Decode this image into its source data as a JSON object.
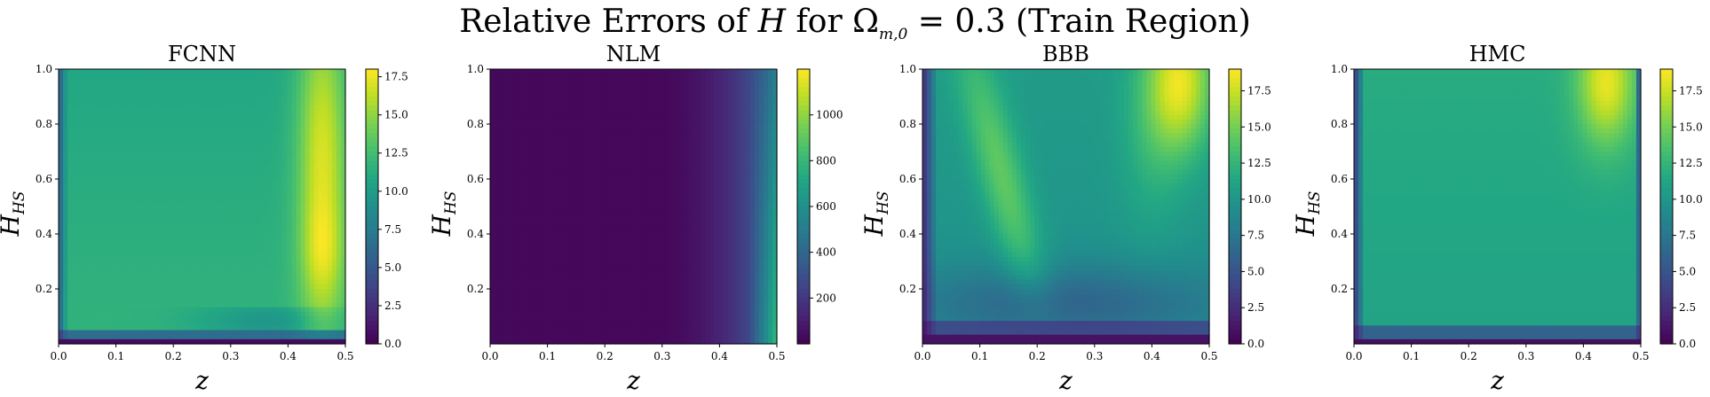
{
  "figure": {
    "suptitle": {
      "text_before": "Relative Errors of ",
      "var": "H",
      "text_mid": " for ",
      "omega": "Ω",
      "omega_sub": "m,0",
      "text_after": " = 0.3 (Train Region)"
    }
  },
  "chart_data": [
    {
      "type": "heatmap",
      "title": "FCNN",
      "xlabel": "z",
      "ylabel_main": "H",
      "ylabel_sub": "HS",
      "xlim": [
        0,
        0.5
      ],
      "ylim": [
        0,
        1.0
      ],
      "xticks": [
        "0.0",
        "0.1",
        "0.2",
        "0.3",
        "0.4",
        "0.5"
      ],
      "yticks": [
        "0.2",
        "0.4",
        "0.6",
        "0.8",
        "1.0"
      ],
      "colorbar": {
        "min": 0,
        "max": 18,
        "ticks": [
          "0.0",
          "2.5",
          "5.0",
          "7.5",
          "10.0",
          "12.5",
          "15.0",
          "17.5"
        ]
      },
      "colormap": "viridis"
    },
    {
      "type": "heatmap",
      "title": "NLM",
      "xlabel": "z",
      "ylabel_main": "H",
      "ylabel_sub": "HS",
      "xlim": [
        0,
        0.5
      ],
      "ylim": [
        0,
        1.0
      ],
      "xticks": [
        "0.0",
        "0.1",
        "0.2",
        "0.3",
        "0.4",
        "0.5"
      ],
      "yticks": [
        "0.2",
        "0.4",
        "0.6",
        "0.8",
        "1.0"
      ],
      "colorbar": {
        "min": 0,
        "max": 1200,
        "ticks": [
          "200",
          "400",
          "600",
          "800",
          "1000"
        ]
      },
      "colormap": "viridis"
    },
    {
      "type": "heatmap",
      "title": "BBB",
      "xlabel": "z",
      "ylabel_main": "H",
      "ylabel_sub": "HS",
      "xlim": [
        0,
        0.5
      ],
      "ylim": [
        0,
        1.0
      ],
      "xticks": [
        "0.0",
        "0.1",
        "0.2",
        "0.3",
        "0.4",
        "0.5"
      ],
      "yticks": [
        "0.2",
        "0.4",
        "0.6",
        "0.8",
        "1.0"
      ],
      "colorbar": {
        "min": 0,
        "max": 19,
        "ticks": [
          "0.0",
          "2.5",
          "5.0",
          "7.5",
          "10.0",
          "12.5",
          "15.0",
          "17.5"
        ]
      },
      "colormap": "viridis"
    },
    {
      "type": "heatmap",
      "title": "HMC",
      "xlabel": "z",
      "ylabel_main": "H",
      "ylabel_sub": "HS",
      "xlim": [
        0,
        0.5
      ],
      "ylim": [
        0,
        1.0
      ],
      "xticks": [
        "0.0",
        "0.1",
        "0.2",
        "0.3",
        "0.4",
        "0.5"
      ],
      "yticks": [
        "0.2",
        "0.4",
        "0.6",
        "0.8",
        "1.0"
      ],
      "colorbar": {
        "min": 0,
        "max": 19,
        "ticks": [
          "0.0",
          "2.5",
          "5.0",
          "7.5",
          "10.0",
          "12.5",
          "15.0",
          "17.5"
        ]
      },
      "colormap": "viridis"
    }
  ]
}
